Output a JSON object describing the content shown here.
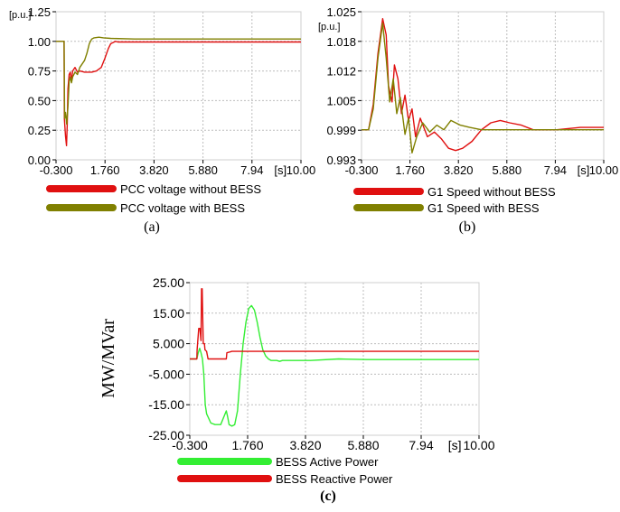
{
  "chart_data": [
    {
      "id": "a",
      "type": "line",
      "caption": "(a)",
      "x_ticks": [
        "-0.300",
        "1.760",
        "3.820",
        "5.880",
        "7.94",
        "10.00"
      ],
      "x_unit": "[s]",
      "y_ticks": [
        "0.00",
        "0.25",
        "0.50",
        "0.75",
        "1.00",
        "1.25"
      ],
      "y_unit": "[p.u.]",
      "xlim": [
        -0.3,
        10.0
      ],
      "ylim": [
        0.0,
        1.25
      ],
      "grid": true,
      "legend_position": "below",
      "colors": [
        "#e01010",
        "#808000"
      ],
      "series": [
        {
          "name": "PCC voltage without BESS",
          "color": "#e01010",
          "x": [
            -0.3,
            0.0,
            0.04,
            0.05,
            0.1,
            0.14,
            0.17,
            0.2,
            0.25,
            0.3,
            0.35,
            0.4,
            0.5,
            0.6,
            0.7,
            0.9,
            1.2,
            1.4,
            1.6,
            1.76,
            1.9,
            2.0,
            2.1,
            2.2,
            2.3,
            2.5,
            3.0,
            5.0,
            7.0,
            10.0
          ],
          "y": [
            1.0,
            1.0,
            1.0,
            0.35,
            0.2,
            0.12,
            0.3,
            0.6,
            0.72,
            0.74,
            0.66,
            0.75,
            0.78,
            0.74,
            0.75,
            0.74,
            0.74,
            0.75,
            0.78,
            0.86,
            0.94,
            0.98,
            0.99,
            1.0,
            0.995,
            0.995,
            0.995,
            0.995,
            0.995,
            0.995
          ]
        },
        {
          "name": "PCC voltage with BESS",
          "color": "#808000",
          "x": [
            -0.3,
            0.0,
            0.04,
            0.06,
            0.1,
            0.15,
            0.2,
            0.25,
            0.3,
            0.35,
            0.4,
            0.5,
            0.6,
            0.7,
            0.9,
            1.0,
            1.1,
            1.2,
            1.3,
            1.5,
            1.7,
            2.0,
            3.0,
            5.0,
            7.0,
            10.0
          ],
          "y": [
            1.0,
            1.0,
            1.0,
            0.35,
            0.4,
            0.3,
            0.45,
            0.66,
            0.7,
            0.65,
            0.7,
            0.74,
            0.72,
            0.78,
            0.84,
            0.9,
            0.98,
            1.02,
            1.03,
            1.035,
            1.03,
            1.025,
            1.02,
            1.02,
            1.02,
            1.02
          ]
        }
      ]
    },
    {
      "id": "b",
      "type": "line",
      "caption": "(b)",
      "x_ticks": [
        "-0.300",
        "1.760",
        "3.820",
        "5.880",
        "7.94",
        "10.00"
      ],
      "x_unit": "[s]",
      "y_ticks": [
        "0.993",
        "0.999",
        "1.005",
        "1.012",
        "1.018",
        "1.025"
      ],
      "y_unit": "[p.u.]",
      "xlim": [
        -0.3,
        10.0
      ],
      "ylim": [
        0.993,
        1.025
      ],
      "grid": true,
      "legend_position": "below",
      "colors": [
        "#e01010",
        "#808000"
      ],
      "series": [
        {
          "name": "G1 Speed without BESS",
          "color": "#e01010",
          "x": [
            -0.3,
            0.0,
            0.2,
            0.4,
            0.6,
            0.75,
            0.85,
            1.0,
            1.1,
            1.25,
            1.4,
            1.55,
            1.7,
            1.85,
            2.0,
            2.2,
            2.5,
            2.8,
            3.1,
            3.4,
            3.7,
            4.0,
            4.4,
            4.8,
            5.2,
            5.6,
            6.0,
            6.5,
            7.0,
            7.5,
            8.0,
            9.0,
            10.0
          ],
          "y": [
            0.9995,
            0.9995,
            1.005,
            1.016,
            1.0235,
            1.02,
            1.009,
            1.0055,
            1.0135,
            1.0105,
            1.003,
            1.007,
            1.0015,
            1.004,
            0.998,
            1.002,
            0.998,
            0.999,
            0.9975,
            0.9955,
            0.995,
            0.9955,
            0.997,
            0.9995,
            1.001,
            1.0015,
            1.001,
            1.0005,
            0.9995,
            0.9995,
            0.9995,
            1.0,
            1.0
          ]
        },
        {
          "name": "G1 Speed with BESS",
          "color": "#808000",
          "x": [
            -0.3,
            0.0,
            0.2,
            0.4,
            0.6,
            0.75,
            0.9,
            1.05,
            1.2,
            1.35,
            1.55,
            1.7,
            1.85,
            2.05,
            2.3,
            2.6,
            2.9,
            3.2,
            3.5,
            3.9,
            4.3,
            4.8,
            5.5,
            6.5,
            8.0,
            10.0
          ],
          "y": [
            0.9995,
            0.9995,
            1.004,
            1.015,
            1.0225,
            1.015,
            1.0055,
            1.0105,
            1.003,
            1.0065,
            0.9985,
            1.002,
            0.9945,
            0.998,
            1.001,
            0.999,
            1.0005,
            0.9995,
            1.0015,
            1.0005,
            1.0,
            0.9995,
            0.9995,
            0.9995,
            0.9995,
            0.9995
          ]
        }
      ]
    },
    {
      "id": "c",
      "type": "line",
      "caption": "(c)",
      "ylabel": "MW/MVar",
      "x_ticks": [
        "-0.300",
        "1.760",
        "3.820",
        "5.880",
        "7.94",
        "10.00"
      ],
      "x_unit": "[s]",
      "y_ticks": [
        "-25.00",
        "-15.00",
        "-5.000",
        "5.000",
        "15.00",
        "25.00"
      ],
      "xlim": [
        -0.3,
        10.0
      ],
      "ylim": [
        -25.0,
        25.0
      ],
      "grid": true,
      "legend_position": "below",
      "colors": [
        "#33ee33",
        "#e01010"
      ],
      "series": [
        {
          "name": "BESS Active Power",
          "color": "#33ee33",
          "x": [
            -0.3,
            -0.05,
            0.0,
            0.05,
            0.1,
            0.15,
            0.2,
            0.25,
            0.3,
            0.35,
            0.45,
            0.6,
            0.8,
            1.0,
            1.05,
            1.1,
            1.2,
            1.3,
            1.4,
            1.5,
            1.6,
            1.7,
            1.8,
            1.9,
            2.0,
            2.1,
            2.2,
            2.3,
            2.4,
            2.5,
            2.6,
            2.7,
            2.8,
            2.9,
            3.0,
            3.2,
            3.5,
            4.0,
            5.0,
            6.0,
            7.0,
            8.0,
            10.0
          ],
          "y": [
            0.0,
            0.0,
            2.0,
            3.5,
            2.0,
            0.0,
            -5.0,
            -15.0,
            -18.0,
            -19.0,
            -21.0,
            -21.5,
            -21.5,
            -17.0,
            -19.0,
            -21.5,
            -22.0,
            -21.5,
            -17.0,
            -5.0,
            5.0,
            12.0,
            16.5,
            17.5,
            16.0,
            12.0,
            7.0,
            3.0,
            1.0,
            0.0,
            -0.5,
            -0.5,
            -0.5,
            -0.8,
            -0.5,
            -0.5,
            -0.5,
            -0.5,
            0.0,
            -0.2,
            -0.2,
            -0.2,
            -0.2
          ]
        },
        {
          "name": "BESS Reactive Power",
          "color": "#e01010",
          "x": [
            -0.3,
            -0.05,
            -0.04,
            0.02,
            0.06,
            0.1,
            0.12,
            0.14,
            0.18,
            0.22,
            0.24,
            0.3,
            0.35,
            0.5,
            0.7,
            0.9,
            1.0,
            1.02,
            1.2,
            1.5,
            2.0,
            3.0,
            4.0,
            6.0,
            8.0,
            10.0
          ],
          "y": [
            0.0,
            0.0,
            3.0,
            10.0,
            10.0,
            6.0,
            23.0,
            23.0,
            5.0,
            5.0,
            3.0,
            2.5,
            0.0,
            0.0,
            0.0,
            0.0,
            0.0,
            2.0,
            2.5,
            2.5,
            2.5,
            2.5,
            2.5,
            2.5,
            2.5,
            2.5
          ]
        }
      ]
    }
  ]
}
